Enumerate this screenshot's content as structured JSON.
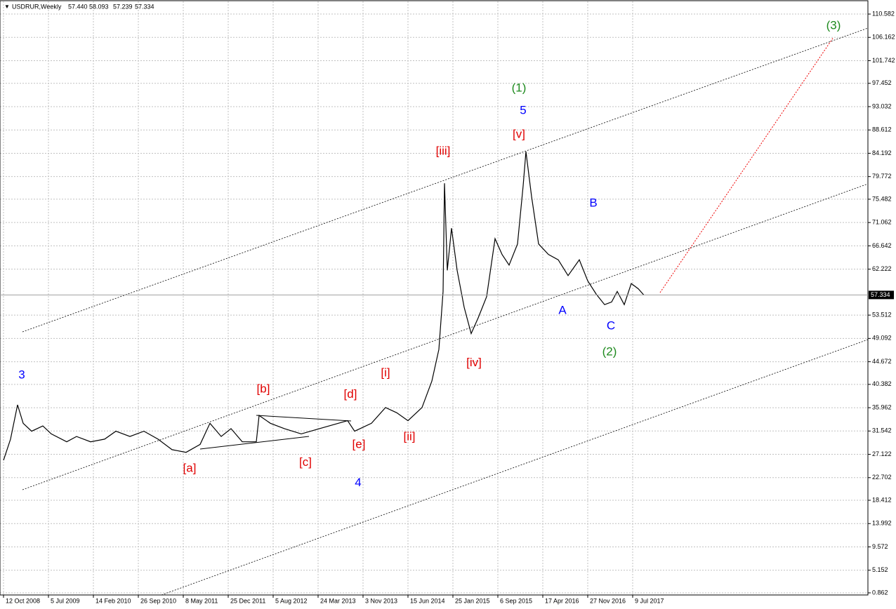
{
  "chart_data": {
    "type": "line",
    "title": "USDRUR,Weekly",
    "header_values": [
      "57.440",
      "58.093",
      "57.239",
      "57.334"
    ],
    "xlim": [
      -2.5,
      615.5
    ],
    "ylim": [
      0.46,
      112.98
    ],
    "grid": true,
    "xticks": [
      {
        "value": 0,
        "label": "12 Oct 2008"
      },
      {
        "value": 32,
        "label": "5 Jul 2009"
      },
      {
        "value": 64,
        "label": "14 Feb 2010"
      },
      {
        "value": 96,
        "label": "26 Sep 2010"
      },
      {
        "value": 128,
        "label": "8 May 2011"
      },
      {
        "value": 160,
        "label": "25 Dec 2011"
      },
      {
        "value": 192,
        "label": "5 Aug 2012"
      },
      {
        "value": 224,
        "label": "24 Mar 2013"
      },
      {
        "value": 256,
        "label": "3 Nov 2013"
      },
      {
        "value": 288,
        "label": "15 Jun 2014"
      },
      {
        "value": 320,
        "label": "25 Jan 2015"
      },
      {
        "value": 352,
        "label": "6 Sep 2015"
      },
      {
        "value": 384,
        "label": "17 Apr 2016"
      },
      {
        "value": 416,
        "label": "27 Nov 2016"
      },
      {
        "value": 448,
        "label": "9 Jul 2017"
      }
    ],
    "yticks": [
      110.582,
      106.162,
      101.742,
      97.452,
      93.032,
      88.612,
      84.192,
      79.772,
      75.482,
      71.062,
      66.642,
      62.222,
      53.512,
      49.092,
      44.672,
      40.382,
      35.962,
      31.542,
      27.122,
      22.702,
      18.412,
      13.992,
      9.572,
      5.152,
      0.862
    ],
    "last_price": 57.334,
    "series": [
      {
        "name": "USDRUR",
        "color": "#000000",
        "x": [
          0,
          5,
          10,
          14,
          20,
          28,
          34,
          45,
          52,
          62,
          72,
          80,
          90,
          100,
          110,
          120,
          130,
          140,
          147,
          155,
          162,
          170,
          180,
          182,
          190,
          200,
          212,
          225,
          245,
          250,
          262,
          272,
          280,
          288,
          298,
          305,
          310,
          313,
          314,
          316,
          319,
          323,
          328,
          333,
          338,
          344,
          350,
          355,
          360,
          366,
          370,
          372,
          376,
          381,
          388,
          395,
          402,
          410,
          416,
          422,
          428,
          433,
          437,
          442,
          447,
          452,
          456
        ],
        "values": [
          26,
          30,
          36.5,
          33,
          31.5,
          32.5,
          31,
          29.5,
          30.5,
          29.5,
          30,
          31.5,
          30.5,
          31.5,
          30,
          28,
          27.5,
          29,
          33,
          30.5,
          32,
          29.5,
          29.5,
          34.5,
          33,
          32,
          31,
          32,
          33.5,
          31.5,
          33,
          36,
          35,
          33.5,
          36,
          41,
          47,
          58,
          78.5,
          62,
          70,
          62,
          55,
          50,
          53,
          57,
          68,
          65,
          63,
          67,
          78,
          84.5,
          76,
          67,
          65,
          64,
          61,
          64,
          60,
          57.5,
          55.5,
          56,
          58,
          55.5,
          59.5,
          58.5,
          57.3
        ]
      }
    ],
    "annotations": [
      {
        "text": "3",
        "x": 13,
        "y": 42.1,
        "color": "#0000ff"
      },
      {
        "text": "4",
        "x": 252.5,
        "y": 21.7,
        "color": "#0000ff"
      },
      {
        "text": "5",
        "x": 370,
        "y": 92.2,
        "color": "#0000ff"
      },
      {
        "text": "(1)",
        "x": 367,
        "y": 96.5,
        "color": "#1e8a1e"
      },
      {
        "text": "(2)",
        "x": 431.5,
        "y": 46.5,
        "color": "#1e8a1e"
      },
      {
        "text": "(3)",
        "x": 591,
        "y": 108.3,
        "color": "#1e8a1e"
      },
      {
        "text": "A",
        "x": 398,
        "y": 54.3,
        "color": "#0000ff"
      },
      {
        "text": "B",
        "x": 420,
        "y": 74.7,
        "color": "#0000ff"
      },
      {
        "text": "C",
        "x": 432.5,
        "y": 51.4,
        "color": "#0000ff"
      },
      {
        "text": "[a]",
        "x": 132.5,
        "y": 24.4,
        "color": "#e00000"
      },
      {
        "text": "[b]",
        "x": 185,
        "y": 39.4,
        "color": "#e00000"
      },
      {
        "text": "[c]",
        "x": 215,
        "y": 25.5,
        "color": "#e00000"
      },
      {
        "text": "[d]",
        "x": 247,
        "y": 38.4,
        "color": "#e00000"
      },
      {
        "text": "[e]",
        "x": 253,
        "y": 28.9,
        "color": "#e00000"
      },
      {
        "text": "[i]",
        "x": 272,
        "y": 42.5,
        "color": "#e00000"
      },
      {
        "text": "[ii]",
        "x": 289,
        "y": 30.4,
        "color": "#e00000"
      },
      {
        "text": "[iii]",
        "x": 313,
        "y": 84.5,
        "color": "#e00000"
      },
      {
        "text": "[iv]",
        "x": 335,
        "y": 44.4,
        "color": "#e00000"
      },
      {
        "text": "[v]",
        "x": 367,
        "y": 87.7,
        "color": "#e00000"
      }
    ]
  }
}
